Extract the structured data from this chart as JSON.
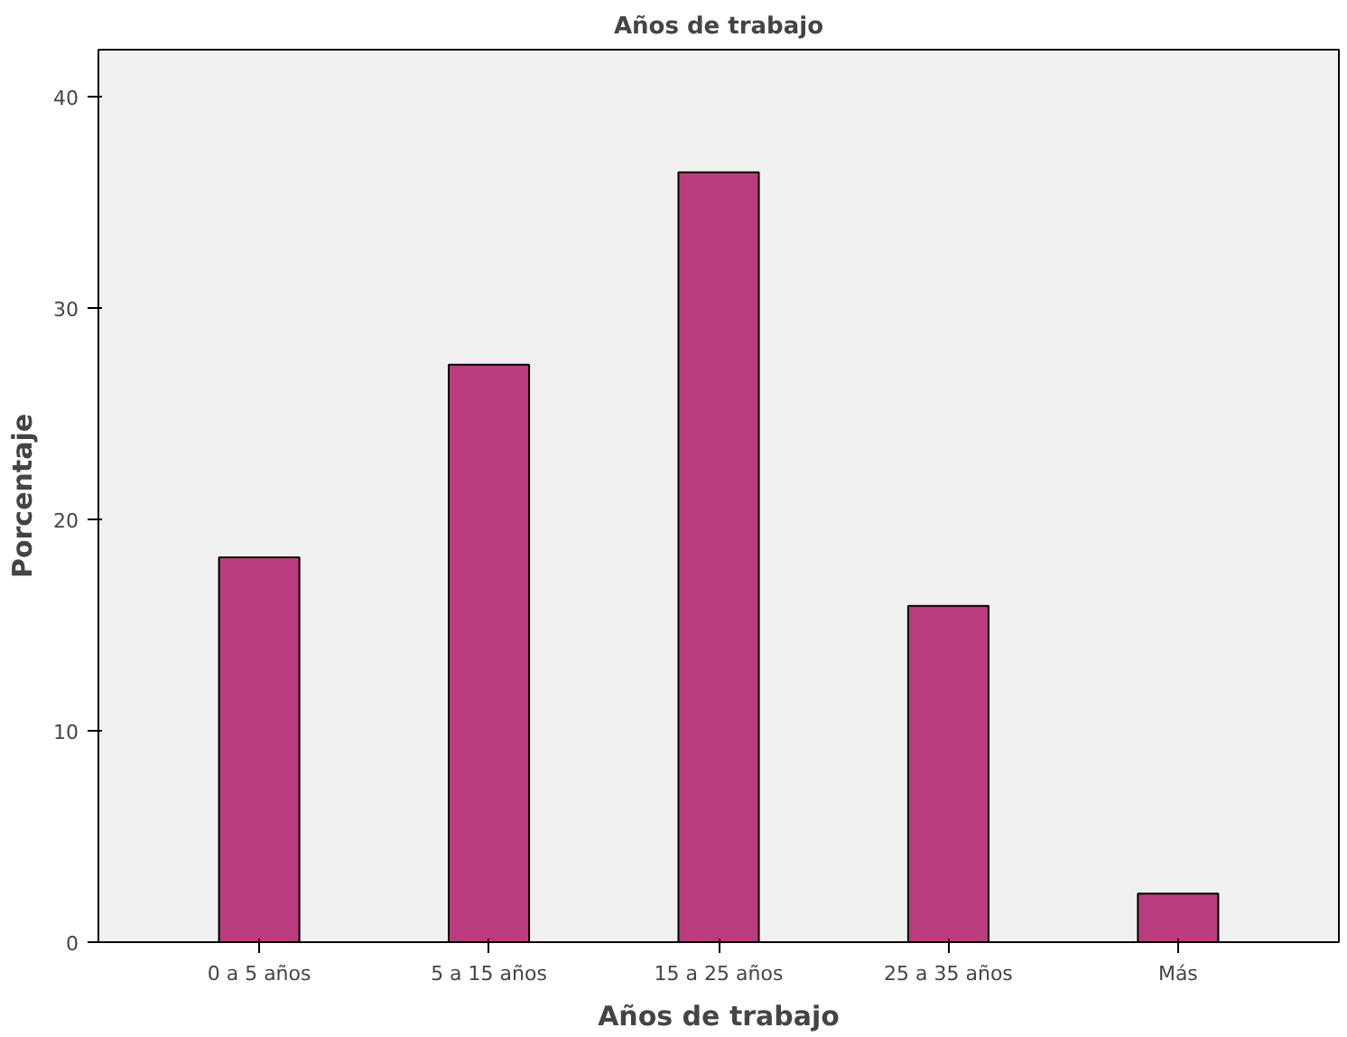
{
  "chart_data": {
    "type": "bar",
    "title": "Años de trabajo",
    "xlabel": "Años de trabajo",
    "ylabel": "Porcentaje",
    "categories": [
      "0 a 5 años",
      "5 a 15 años",
      "15 a 25 años",
      "25 a 35 años",
      "Más"
    ],
    "values": [
      18.2,
      27.3,
      36.4,
      15.9,
      2.3
    ],
    "color": "#b93d7d",
    "ylim": [
      0,
      42.2
    ],
    "yticks": [
      0,
      10,
      20,
      30,
      40
    ],
    "grid": false
  }
}
